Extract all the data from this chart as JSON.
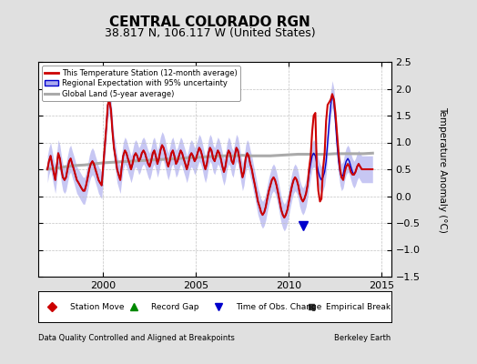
{
  "title": "CENTRAL COLORADO RGN",
  "subtitle": "38.817 N, 106.117 W (United States)",
  "ylabel": "Temperature Anomaly (°C)",
  "xlabel_left": "Data Quality Controlled and Aligned at Breakpoints",
  "xlabel_right": "Berkeley Earth",
  "ylim": [
    -1.5,
    2.5
  ],
  "xlim": [
    1996.5,
    2015.5
  ],
  "yticks": [
    -1.5,
    -1.0,
    -0.5,
    0.0,
    0.5,
    1.0,
    1.5,
    2.0,
    2.5
  ],
  "xticks": [
    2000,
    2005,
    2010,
    2015
  ],
  "bg_color": "#e0e0e0",
  "plot_bg_color": "#ffffff",
  "grid_color": "#bbbbbb",
  "title_fontsize": 11,
  "subtitle_fontsize": 9,
  "legend1_labels": [
    "This Temperature Station (12-month average)",
    "Regional Expectation with 95% uncertainty",
    "Global Land (5-year average)"
  ],
  "legend2_labels": [
    "Station Move",
    "Record Gap",
    "Time of Obs. Change",
    "Empirical Break"
  ],
  "regional_line_color": "#0000cc",
  "regional_fill_color": "#aaaaee",
  "station_line_color": "#cc0000",
  "global_line_color": "#aaaaaa",
  "time_obs_marker_color": "#0000cc",
  "t": [
    1997.0,
    1997.08,
    1997.17,
    1997.25,
    1997.33,
    1997.42,
    1997.5,
    1997.58,
    1997.67,
    1997.75,
    1997.83,
    1997.92,
    1998.0,
    1998.08,
    1998.17,
    1998.25,
    1998.33,
    1998.42,
    1998.5,
    1998.58,
    1998.67,
    1998.75,
    1998.83,
    1998.92,
    1999.0,
    1999.08,
    1999.17,
    1999.25,
    1999.33,
    1999.42,
    1999.5,
    1999.58,
    1999.67,
    1999.75,
    1999.83,
    1999.92,
    2000.0,
    2000.08,
    2000.17,
    2000.25,
    2000.33,
    2000.42,
    2000.5,
    2000.58,
    2000.67,
    2000.75,
    2000.83,
    2000.92,
    2001.0,
    2001.08,
    2001.17,
    2001.25,
    2001.33,
    2001.42,
    2001.5,
    2001.58,
    2001.67,
    2001.75,
    2001.83,
    2001.92,
    2002.0,
    2002.08,
    2002.17,
    2002.25,
    2002.33,
    2002.42,
    2002.5,
    2002.58,
    2002.67,
    2002.75,
    2002.83,
    2002.92,
    2003.0,
    2003.08,
    2003.17,
    2003.25,
    2003.33,
    2003.42,
    2003.5,
    2003.58,
    2003.67,
    2003.75,
    2003.83,
    2003.92,
    2004.0,
    2004.08,
    2004.17,
    2004.25,
    2004.33,
    2004.42,
    2004.5,
    2004.58,
    2004.67,
    2004.75,
    2004.83,
    2004.92,
    2005.0,
    2005.08,
    2005.17,
    2005.25,
    2005.33,
    2005.42,
    2005.5,
    2005.58,
    2005.67,
    2005.75,
    2005.83,
    2005.92,
    2006.0,
    2006.08,
    2006.17,
    2006.25,
    2006.33,
    2006.42,
    2006.5,
    2006.58,
    2006.67,
    2006.75,
    2006.83,
    2006.92,
    2007.0,
    2007.08,
    2007.17,
    2007.25,
    2007.33,
    2007.42,
    2007.5,
    2007.58,
    2007.67,
    2007.75,
    2007.83,
    2007.92,
    2008.0,
    2008.08,
    2008.17,
    2008.25,
    2008.33,
    2008.42,
    2008.5,
    2008.58,
    2008.67,
    2008.75,
    2008.83,
    2008.92,
    2009.0,
    2009.08,
    2009.17,
    2009.25,
    2009.33,
    2009.42,
    2009.5,
    2009.58,
    2009.67,
    2009.75,
    2009.83,
    2009.92,
    2010.0,
    2010.08,
    2010.17,
    2010.25,
    2010.33,
    2010.42,
    2010.5,
    2010.58,
    2010.67,
    2010.75,
    2010.83,
    2010.92,
    2011.0,
    2011.08,
    2011.17,
    2011.25,
    2011.33,
    2011.42,
    2011.5,
    2011.58,
    2011.67,
    2011.75,
    2011.83,
    2011.92,
    2012.0,
    2012.08,
    2012.17,
    2012.25,
    2012.33,
    2012.42,
    2012.5,
    2012.58,
    2012.67,
    2012.75,
    2012.83,
    2012.92,
    2013.0,
    2013.08,
    2013.17,
    2013.25,
    2013.33,
    2013.42,
    2013.5,
    2013.58,
    2013.67,
    2013.75,
    2013.83,
    2013.92,
    2014.0,
    2014.08,
    2014.17,
    2014.25,
    2014.33,
    2014.42,
    2014.5
  ],
  "regional_mean": [
    0.5,
    0.65,
    0.75,
    0.6,
    0.45,
    0.3,
    0.55,
    0.8,
    0.7,
    0.5,
    0.35,
    0.3,
    0.35,
    0.5,
    0.65,
    0.7,
    0.6,
    0.5,
    0.4,
    0.3,
    0.25,
    0.2,
    0.15,
    0.1,
    0.1,
    0.2,
    0.35,
    0.5,
    0.6,
    0.65,
    0.6,
    0.5,
    0.4,
    0.3,
    0.25,
    0.2,
    0.55,
    0.9,
    1.3,
    1.7,
    1.8,
    1.6,
    1.2,
    0.9,
    0.7,
    0.5,
    0.4,
    0.3,
    0.55,
    0.75,
    0.85,
    0.8,
    0.7,
    0.6,
    0.5,
    0.6,
    0.75,
    0.8,
    0.75,
    0.65,
    0.7,
    0.8,
    0.85,
    0.8,
    0.7,
    0.6,
    0.55,
    0.65,
    0.8,
    0.85,
    0.75,
    0.6,
    0.7,
    0.85,
    0.95,
    0.9,
    0.8,
    0.65,
    0.55,
    0.65,
    0.8,
    0.85,
    0.75,
    0.6,
    0.65,
    0.75,
    0.85,
    0.8,
    0.7,
    0.6,
    0.5,
    0.6,
    0.75,
    0.8,
    0.75,
    0.65,
    0.7,
    0.8,
    0.9,
    0.85,
    0.75,
    0.6,
    0.5,
    0.6,
    0.8,
    0.9,
    0.85,
    0.7,
    0.65,
    0.75,
    0.85,
    0.8,
    0.7,
    0.55,
    0.45,
    0.55,
    0.75,
    0.85,
    0.8,
    0.65,
    0.6,
    0.75,
    0.9,
    0.85,
    0.7,
    0.5,
    0.35,
    0.45,
    0.7,
    0.8,
    0.75,
    0.6,
    0.5,
    0.35,
    0.2,
    0.05,
    -0.1,
    -0.2,
    -0.3,
    -0.35,
    -0.3,
    -0.2,
    -0.05,
    0.1,
    0.2,
    0.3,
    0.35,
    0.3,
    0.2,
    0.05,
    -0.1,
    -0.25,
    -0.35,
    -0.4,
    -0.35,
    -0.25,
    -0.1,
    0.05,
    0.2,
    0.3,
    0.35,
    0.3,
    0.2,
    0.05,
    -0.05,
    -0.1,
    -0.05,
    0.05,
    0.2,
    0.4,
    0.6,
    0.75,
    0.8,
    0.75,
    0.6,
    0.45,
    0.35,
    0.3,
    0.35,
    0.45,
    0.65,
    1.0,
    1.4,
    1.7,
    1.9,
    1.75,
    1.4,
    1.0,
    0.65,
    0.45,
    0.35,
    0.4,
    0.55,
    0.65,
    0.7,
    0.65,
    0.55,
    0.45,
    0.4,
    0.45,
    0.55,
    0.6,
    0.55,
    0.5,
    0.5,
    0.5,
    0.5,
    0.5,
    0.5,
    0.5,
    0.5
  ],
  "regional_upper": [
    0.75,
    0.9,
    1.0,
    0.85,
    0.7,
    0.55,
    0.8,
    1.05,
    0.95,
    0.75,
    0.6,
    0.55,
    0.6,
    0.75,
    0.9,
    0.95,
    0.85,
    0.75,
    0.65,
    0.55,
    0.5,
    0.45,
    0.4,
    0.35,
    0.35,
    0.45,
    0.6,
    0.75,
    0.85,
    0.9,
    0.85,
    0.75,
    0.65,
    0.55,
    0.5,
    0.45,
    0.8,
    1.15,
    1.55,
    1.95,
    2.05,
    1.85,
    1.45,
    1.15,
    0.95,
    0.75,
    0.65,
    0.55,
    0.8,
    1.0,
    1.1,
    1.05,
    0.95,
    0.85,
    0.75,
    0.85,
    1.0,
    1.05,
    1.0,
    0.9,
    0.95,
    1.05,
    1.1,
    1.05,
    0.95,
    0.85,
    0.8,
    0.9,
    1.05,
    1.1,
    1.0,
    0.85,
    0.95,
    1.1,
    1.2,
    1.15,
    1.05,
    0.9,
    0.8,
    0.9,
    1.05,
    1.1,
    1.0,
    0.85,
    0.9,
    1.0,
    1.1,
    1.05,
    0.95,
    0.85,
    0.75,
    0.85,
    1.0,
    1.05,
    1.0,
    0.9,
    0.95,
    1.05,
    1.15,
    1.1,
    1.0,
    0.85,
    0.75,
    0.85,
    1.05,
    1.15,
    1.1,
    0.95,
    0.9,
    1.0,
    1.1,
    1.05,
    0.95,
    0.8,
    0.7,
    0.8,
    1.0,
    1.1,
    1.05,
    0.9,
    0.85,
    1.0,
    1.15,
    1.1,
    0.95,
    0.75,
    0.6,
    0.7,
    0.95,
    1.05,
    1.0,
    0.85,
    0.75,
    0.6,
    0.45,
    0.3,
    0.15,
    0.05,
    -0.05,
    -0.1,
    -0.05,
    0.05,
    0.2,
    0.35,
    0.45,
    0.55,
    0.6,
    0.55,
    0.45,
    0.3,
    0.15,
    0.0,
    -0.1,
    -0.15,
    -0.1,
    0.0,
    0.15,
    0.3,
    0.45,
    0.55,
    0.6,
    0.55,
    0.45,
    0.3,
    0.2,
    0.15,
    0.2,
    0.3,
    0.45,
    0.65,
    0.85,
    1.0,
    1.05,
    1.0,
    0.85,
    0.7,
    0.6,
    0.55,
    0.6,
    0.7,
    0.9,
    1.25,
    1.65,
    1.95,
    2.15,
    2.0,
    1.65,
    1.25,
    0.9,
    0.7,
    0.6,
    0.65,
    0.8,
    0.9,
    0.95,
    0.9,
    0.8,
    0.7,
    0.65,
    0.7,
    0.8,
    0.85,
    0.8,
    0.75,
    0.75,
    0.75,
    0.75,
    0.75,
    0.75,
    0.75,
    0.75
  ],
  "regional_lower": [
    0.25,
    0.4,
    0.5,
    0.35,
    0.2,
    0.05,
    0.3,
    0.55,
    0.45,
    0.25,
    0.1,
    0.05,
    0.1,
    0.25,
    0.4,
    0.45,
    0.35,
    0.25,
    0.15,
    0.05,
    0.0,
    -0.05,
    -0.1,
    -0.15,
    -0.15,
    -0.05,
    0.1,
    0.25,
    0.35,
    0.4,
    0.35,
    0.25,
    0.15,
    0.05,
    0.0,
    -0.05,
    0.3,
    0.65,
    1.05,
    1.45,
    1.55,
    1.35,
    0.95,
    0.65,
    0.45,
    0.25,
    0.15,
    0.05,
    0.3,
    0.5,
    0.6,
    0.55,
    0.45,
    0.35,
    0.25,
    0.35,
    0.5,
    0.55,
    0.5,
    0.4,
    0.45,
    0.55,
    0.6,
    0.55,
    0.45,
    0.35,
    0.3,
    0.4,
    0.55,
    0.6,
    0.5,
    0.35,
    0.45,
    0.6,
    0.7,
    0.65,
    0.55,
    0.4,
    0.3,
    0.4,
    0.55,
    0.6,
    0.5,
    0.35,
    0.4,
    0.5,
    0.6,
    0.55,
    0.45,
    0.35,
    0.25,
    0.35,
    0.5,
    0.55,
    0.5,
    0.4,
    0.45,
    0.55,
    0.65,
    0.6,
    0.5,
    0.35,
    0.25,
    0.35,
    0.55,
    0.65,
    0.6,
    0.45,
    0.4,
    0.5,
    0.6,
    0.55,
    0.45,
    0.3,
    0.2,
    0.3,
    0.5,
    0.6,
    0.55,
    0.4,
    0.35,
    0.5,
    0.65,
    0.6,
    0.45,
    0.25,
    0.1,
    0.2,
    0.45,
    0.55,
    0.5,
    0.35,
    0.25,
    0.1,
    -0.05,
    -0.2,
    -0.35,
    -0.45,
    -0.55,
    -0.6,
    -0.55,
    -0.45,
    -0.3,
    -0.15,
    -0.05,
    0.05,
    0.1,
    0.05,
    -0.05,
    -0.2,
    -0.35,
    -0.5,
    -0.6,
    -0.65,
    -0.6,
    -0.5,
    -0.35,
    -0.2,
    -0.05,
    0.05,
    0.1,
    0.05,
    -0.05,
    -0.2,
    -0.3,
    -0.35,
    -0.3,
    -0.2,
    -0.05,
    0.15,
    0.35,
    0.5,
    0.55,
    0.5,
    0.35,
    0.2,
    0.1,
    0.05,
    0.1,
    0.2,
    0.4,
    0.75,
    1.15,
    1.45,
    1.65,
    1.5,
    1.15,
    0.75,
    0.4,
    0.2,
    0.1,
    0.15,
    0.3,
    0.4,
    0.45,
    0.4,
    0.3,
    0.2,
    0.15,
    0.2,
    0.3,
    0.35,
    0.3,
    0.25,
    0.25,
    0.25,
    0.25,
    0.25,
    0.25,
    0.25,
    0.25
  ],
  "station_t": [
    1997.0,
    1997.08,
    1997.17,
    1997.25,
    1997.33,
    1997.42,
    1997.5,
    1997.58,
    1997.67,
    1997.75,
    1997.83,
    1997.92,
    1998.0,
    1998.08,
    1998.17,
    1998.25,
    1998.33,
    1998.42,
    1998.5,
    1998.58,
    1998.67,
    1998.75,
    1998.83,
    1998.92,
    1999.0,
    1999.08,
    1999.17,
    1999.25,
    1999.33,
    1999.42,
    1999.5,
    1999.58,
    1999.67,
    1999.75,
    1999.83,
    1999.92,
    2000.0,
    2000.08,
    2000.17,
    2000.25,
    2000.33,
    2000.42,
    2000.5,
    2000.58,
    2000.67,
    2000.75,
    2000.83,
    2000.92,
    2001.0,
    2001.08,
    2001.17,
    2001.25,
    2001.33,
    2001.42,
    2001.5,
    2001.58,
    2001.67,
    2001.75,
    2001.83,
    2001.92,
    2002.0,
    2002.08,
    2002.17,
    2002.25,
    2002.33,
    2002.42,
    2002.5,
    2002.58,
    2002.67,
    2002.75,
    2002.83,
    2002.92,
    2003.0,
    2003.08,
    2003.17,
    2003.25,
    2003.33,
    2003.42,
    2003.5,
    2003.58,
    2003.67,
    2003.75,
    2003.83,
    2003.92,
    2004.0,
    2004.08,
    2004.17,
    2004.25,
    2004.33,
    2004.42,
    2004.5,
    2004.58,
    2004.67,
    2004.75,
    2004.83,
    2004.92,
    2005.0,
    2005.08,
    2005.17,
    2005.25,
    2005.33,
    2005.42,
    2005.5,
    2005.58,
    2005.67,
    2005.75,
    2005.83,
    2005.92,
    2006.0,
    2006.08,
    2006.17,
    2006.25,
    2006.33,
    2006.42,
    2006.5,
    2006.58,
    2006.67,
    2006.75,
    2006.83,
    2006.92,
    2007.0,
    2007.08,
    2007.17,
    2007.25,
    2007.33,
    2007.42,
    2007.5,
    2007.58,
    2007.67,
    2007.75,
    2007.83,
    2007.92,
    2008.0,
    2008.08,
    2008.17,
    2008.25,
    2008.33,
    2008.42,
    2008.5,
    2008.58,
    2008.67,
    2008.75,
    2008.83,
    2008.92,
    2009.0,
    2009.08,
    2009.17,
    2009.25,
    2009.33,
    2009.42,
    2009.5,
    2009.58,
    2009.67,
    2009.75,
    2009.83,
    2009.92,
    2010.0,
    2010.08,
    2010.17,
    2010.25,
    2010.33,
    2010.42,
    2010.5,
    2010.58,
    2010.67,
    2010.75,
    2010.83,
    2010.92,
    2011.0,
    2011.08,
    2011.17,
    2011.25,
    2011.33,
    2011.42,
    2011.5,
    2011.58,
    2011.67,
    2011.75,
    2011.83,
    2011.92,
    2012.0,
    2012.08,
    2012.17,
    2012.25,
    2012.33,
    2012.42,
    2012.5,
    2012.58,
    2012.67,
    2012.75,
    2012.83,
    2012.92,
    2013.0,
    2013.08,
    2013.17,
    2013.25,
    2013.33,
    2013.42,
    2013.5,
    2013.58,
    2013.67,
    2013.75,
    2013.83,
    2013.92,
    2014.0,
    2014.08,
    2014.17,
    2014.25,
    2014.33,
    2014.42,
    2014.5
  ],
  "station_val": [
    0.5,
    0.65,
    0.75,
    0.6,
    0.45,
    0.3,
    0.55,
    0.8,
    0.7,
    0.5,
    0.35,
    0.3,
    0.35,
    0.5,
    0.65,
    0.7,
    0.6,
    0.5,
    0.4,
    0.3,
    0.25,
    0.2,
    0.15,
    0.1,
    0.1,
    0.2,
    0.35,
    0.5,
    0.6,
    0.65,
    0.6,
    0.5,
    0.4,
    0.3,
    0.25,
    0.2,
    0.55,
    0.9,
    1.3,
    1.7,
    1.8,
    1.6,
    1.2,
    0.9,
    0.7,
    0.5,
    0.4,
    0.3,
    0.55,
    0.75,
    0.85,
    0.8,
    0.7,
    0.6,
    0.5,
    0.6,
    0.75,
    0.8,
    0.75,
    0.65,
    0.7,
    0.8,
    0.85,
    0.8,
    0.7,
    0.6,
    0.55,
    0.65,
    0.8,
    0.85,
    0.75,
    0.6,
    0.7,
    0.85,
    0.95,
    0.9,
    0.8,
    0.65,
    0.55,
    0.65,
    0.8,
    0.85,
    0.75,
    0.6,
    0.65,
    0.75,
    0.85,
    0.8,
    0.7,
    0.6,
    0.5,
    0.6,
    0.75,
    0.8,
    0.75,
    0.65,
    0.7,
    0.8,
    0.9,
    0.85,
    0.75,
    0.6,
    0.5,
    0.6,
    0.8,
    0.9,
    0.85,
    0.7,
    0.65,
    0.75,
    0.85,
    0.8,
    0.7,
    0.55,
    0.45,
    0.55,
    0.75,
    0.85,
    0.8,
    0.65,
    0.6,
    0.75,
    0.9,
    0.85,
    0.7,
    0.5,
    0.35,
    0.45,
    0.7,
    0.8,
    0.75,
    0.6,
    0.5,
    0.35,
    0.2,
    0.05,
    -0.1,
    -0.2,
    -0.3,
    -0.35,
    -0.3,
    -0.2,
    -0.05,
    0.1,
    0.2,
    0.3,
    0.35,
    0.3,
    0.2,
    0.05,
    -0.1,
    -0.25,
    -0.35,
    -0.4,
    -0.35,
    -0.25,
    -0.1,
    0.05,
    0.2,
    0.3,
    0.35,
    0.3,
    0.2,
    0.05,
    -0.05,
    -0.1,
    -0.05,
    0.05,
    0.2,
    0.5,
    0.75,
    1.2,
    1.5,
    1.55,
    0.5,
    0.1,
    -0.1,
    -0.05,
    0.5,
    0.8,
    1.4,
    1.7,
    1.75,
    1.8,
    1.9,
    1.8,
    1.55,
    1.2,
    0.8,
    0.5,
    0.35,
    0.3,
    0.45,
    0.55,
    0.6,
    0.55,
    0.45,
    0.4,
    0.4,
    0.45,
    0.55,
    0.6,
    0.55,
    0.5,
    0.5,
    0.5,
    0.5,
    0.5,
    0.5,
    0.5,
    0.5
  ],
  "global_t": [
    1997.0,
    1997.5,
    1998.0,
    1998.5,
    1999.0,
    1999.5,
    2000.0,
    2000.5,
    2001.0,
    2001.5,
    2002.0,
    2002.5,
    2003.0,
    2003.5,
    2004.0,
    2004.5,
    2005.0,
    2005.5,
    2006.0,
    2006.5,
    2007.0,
    2007.5,
    2008.0,
    2008.5,
    2009.0,
    2009.5,
    2010.0,
    2010.5,
    2011.0,
    2011.5,
    2012.0,
    2012.5,
    2013.0,
    2013.5,
    2014.0,
    2014.5
  ],
  "global_val": [
    0.5,
    0.52,
    0.55,
    0.57,
    0.58,
    0.6,
    0.62,
    0.63,
    0.64,
    0.65,
    0.66,
    0.67,
    0.68,
    0.69,
    0.7,
    0.71,
    0.72,
    0.73,
    0.74,
    0.75,
    0.75,
    0.76,
    0.75,
    0.75,
    0.75,
    0.76,
    0.77,
    0.78,
    0.78,
    0.78,
    0.78,
    0.79,
    0.79,
    0.79,
    0.79,
    0.8
  ],
  "time_obs_x": 2010.75,
  "time_obs_y": -0.55,
  "station_move_x": null,
  "record_gap_x": null,
  "empirical_break_x": null
}
